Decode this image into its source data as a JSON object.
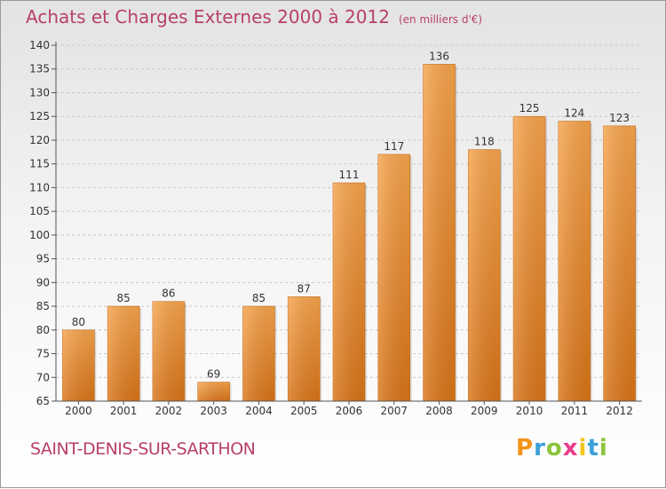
{
  "header": {
    "title": "Achats et Charges Externes 2000 à 2012",
    "unit": "(en milliers d'€)"
  },
  "footer": {
    "place": "SAINT-DENIS-SUR-SARTHON",
    "logo": {
      "text": "Proxiti",
      "letters": [
        {
          "char": "P",
          "color": "#f29418"
        },
        {
          "char": "r",
          "color": "#3aa0d8"
        },
        {
          "char": "o",
          "color": "#8cc43c"
        },
        {
          "char": "x",
          "color": "#e83c8c"
        },
        {
          "char": "i",
          "color": "#f2c418"
        },
        {
          "char": "t",
          "color": "#3aa0d8"
        },
        {
          "char": "i",
          "color": "#8cc43c"
        }
      ]
    }
  },
  "chart_data": {
    "type": "bar",
    "title": "Achats et Charges Externes 2000 à 2012",
    "subtitle": "(en milliers d'€)",
    "xlabel": "",
    "ylabel": "",
    "categories": [
      "2000",
      "2001",
      "2002",
      "2003",
      "2004",
      "2005",
      "2006",
      "2007",
      "2008",
      "2009",
      "2010",
      "2011",
      "2012"
    ],
    "values": [
      80,
      85,
      86,
      69,
      85,
      87,
      111,
      117,
      136,
      118,
      125,
      124,
      123
    ],
    "ylim": [
      65,
      140
    ],
    "yticks": [
      65,
      70,
      75,
      80,
      85,
      90,
      95,
      100,
      105,
      110,
      115,
      120,
      125,
      130,
      135,
      140
    ],
    "grid": true,
    "data_labels": true,
    "bar_color": "#f0902c"
  }
}
